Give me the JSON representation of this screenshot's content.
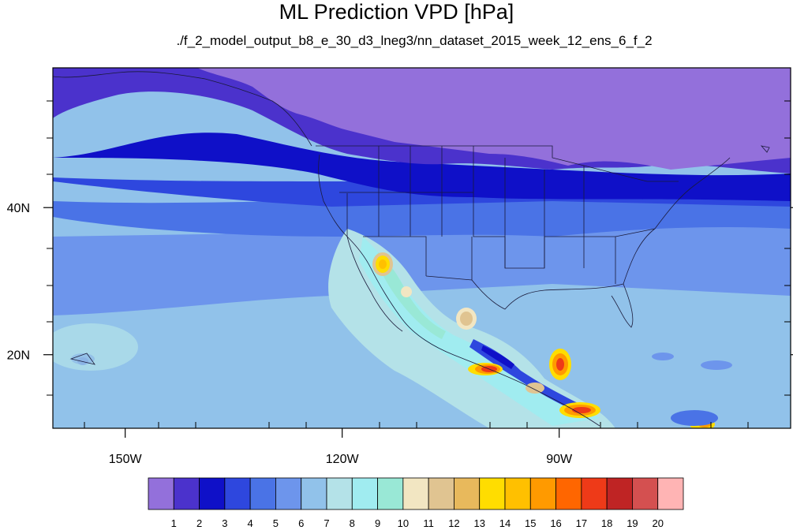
{
  "title": "ML Prediction VPD [hPa]",
  "subtitle": "./f_2_model_output_b8_e_30_d3_lneg3/nn_dataset_2015_week_12_ens_6_f_2",
  "map": {
    "lon_range": [
      -160,
      -58
    ],
    "lat_range": [
      10,
      59
    ],
    "lat_ticks": [
      {
        "value": 40,
        "label": "40N"
      },
      {
        "value": 20,
        "label": "20N"
      }
    ],
    "lon_ticks": [
      {
        "value": -150,
        "label": "150W"
      },
      {
        "value": -120,
        "label": "120W"
      },
      {
        "value": -90,
        "label": "90W"
      }
    ]
  },
  "colorbar": {
    "levels": [
      "1",
      "2",
      "3",
      "4",
      "5",
      "6",
      "7",
      "8",
      "9",
      "10",
      "11",
      "12",
      "13",
      "14",
      "15",
      "16",
      "17",
      "18",
      "19",
      "20"
    ],
    "colors": [
      "#9370db",
      "#4b32cc",
      "#0f10c8",
      "#2e47de",
      "#4a73e6",
      "#6d95ec",
      "#91c2ea",
      "#b4e2e8",
      "#a0ecf0",
      "#99e8d6",
      "#f2e6c2",
      "#e0c491",
      "#e8b95c",
      "#ffdd00",
      "#ffc000",
      "#ff9a00",
      "#ff6600",
      "#ee3a18",
      "#bf2424",
      "#d45050",
      "#ffb4b4"
    ]
  }
}
